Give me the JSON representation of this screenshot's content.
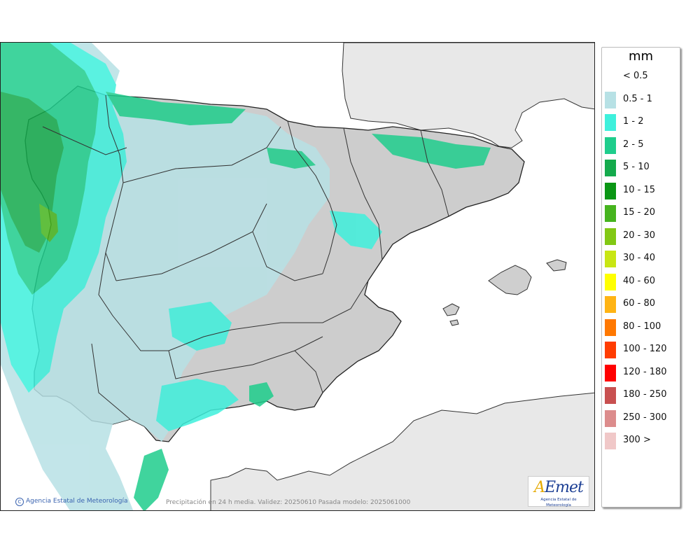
{
  "legend": {
    "unit": "mm",
    "classes": [
      {
        "label": "< 0.5",
        "color": ""
      },
      {
        "label": "0.5 - 1",
        "color": "#b7e1e5"
      },
      {
        "label": "1 - 2",
        "color": "#3ef0dc"
      },
      {
        "label": "2 - 5",
        "color": "#1fcd8c"
      },
      {
        "label": "5 - 10",
        "color": "#14aa4c"
      },
      {
        "label": "10 - 15",
        "color": "#0a9614"
      },
      {
        "label": "15 - 20",
        "color": "#46b41e"
      },
      {
        "label": "20 - 30",
        "color": "#82c814"
      },
      {
        "label": "30 - 40",
        "color": "#c8e614"
      },
      {
        "label": "40 - 60",
        "color": "#ffff00"
      },
      {
        "label": "60 - 80",
        "color": "#ffb414"
      },
      {
        "label": "80 - 100",
        "color": "#ff7800"
      },
      {
        "label": "100 - 120",
        "color": "#ff3c00"
      },
      {
        "label": "120 - 180",
        "color": "#ff0000"
      },
      {
        "label": "180 - 250",
        "color": "#c85050"
      },
      {
        "label": "250 - 300",
        "color": "#dc8c8c"
      },
      {
        "label": "300 >",
        "color": "#f0c8c8"
      }
    ]
  },
  "credit": "Agencia Estatal de Meteorología",
  "credit_icon": "copyright-icon",
  "caption": "Precipitación en 24 h media. Validez: 20250610 Pasada modelo: 2025061000",
  "logo": {
    "mark": "AEmet",
    "subtitle": "Agencia Estatal de Meteorología"
  },
  "colors": {
    "sea": "#ffffff",
    "land_base": "#c8c8c8",
    "foreign_land": "#e8e8e8"
  }
}
